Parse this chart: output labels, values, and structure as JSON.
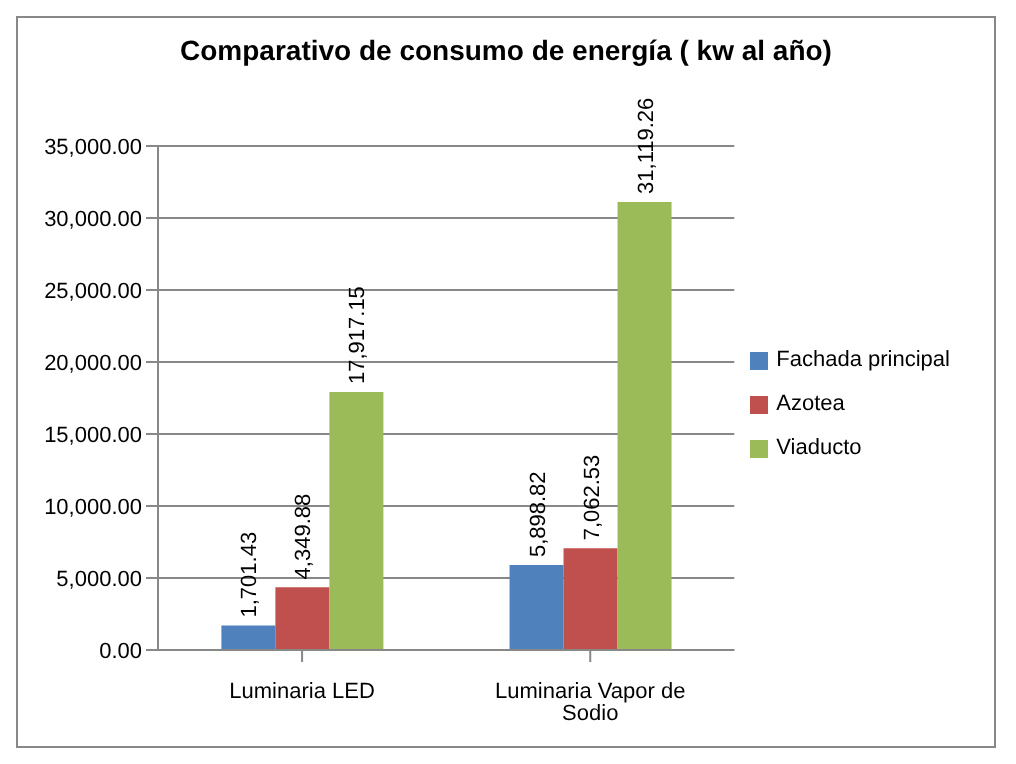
{
  "chart_data": {
    "type": "bar",
    "title": "Comparativo de consumo de energía ( kw al año)",
    "categories": [
      "Luminaria LED",
      "Luminaria Vapor de Sodio"
    ],
    "series": [
      {
        "name": "Fachada principal",
        "color": "#4f81bd",
        "values": [
          1701.43,
          5898.82
        ],
        "value_labels": [
          "1,701.43",
          "5,898.82"
        ]
      },
      {
        "name": "Azotea",
        "color": "#c0504d",
        "values": [
          4349.88,
          7062.53
        ],
        "value_labels": [
          "4,349.88",
          "7,062.53"
        ]
      },
      {
        "name": "Viaducto",
        "color": "#9bbb59",
        "values": [
          17917.15,
          31119.26
        ],
        "value_labels": [
          "17,917.15",
          "31,119.26"
        ]
      }
    ],
    "ylim": [
      0,
      35000
    ],
    "yticks": [
      {
        "value": 0,
        "label": "0.00"
      },
      {
        "value": 5000,
        "label": "5,000.00"
      },
      {
        "value": 10000,
        "label": "10,000.00"
      },
      {
        "value": 15000,
        "label": "15,000.00"
      },
      {
        "value": 20000,
        "label": "20,000.00"
      },
      {
        "value": 25000,
        "label": "25,000.00"
      },
      {
        "value": 30000,
        "label": "30,000.00"
      },
      {
        "value": 35000,
        "label": "35,000.00"
      }
    ],
    "grid": "y",
    "legend": "right"
  }
}
